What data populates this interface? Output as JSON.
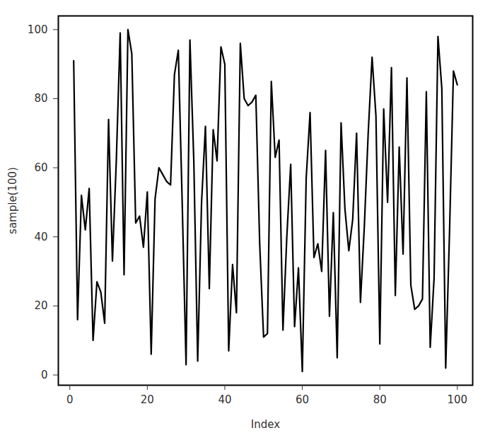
{
  "chart_data": {
    "type": "line",
    "x_label": "Index",
    "y_label": "sample(100)",
    "x": [
      1,
      2,
      3,
      4,
      5,
      6,
      7,
      8,
      9,
      10,
      11,
      12,
      13,
      14,
      15,
      16,
      17,
      18,
      19,
      20,
      21,
      22,
      23,
      24,
      25,
      26,
      27,
      28,
      29,
      30,
      31,
      32,
      33,
      34,
      35,
      36,
      37,
      38,
      39,
      40,
      41,
      42,
      43,
      44,
      45,
      46,
      47,
      48,
      49,
      50,
      51,
      52,
      53,
      54,
      55,
      56,
      57,
      58,
      59,
      60,
      61,
      62,
      63,
      64,
      65,
      66,
      67,
      68,
      69,
      70,
      71,
      72,
      73,
      74,
      75,
      76,
      77,
      78,
      79,
      80,
      81,
      82,
      83,
      84,
      85,
      86,
      87,
      88,
      89,
      90,
      91,
      92,
      93,
      94,
      95,
      96,
      97,
      98,
      99,
      100
    ],
    "values": [
      91,
      16,
      52,
      42,
      54,
      10,
      27,
      24,
      15,
      74,
      33,
      62,
      99,
      29,
      100,
      93,
      44,
      46,
      37,
      53,
      6,
      51,
      60,
      58,
      56,
      55,
      87,
      94,
      50,
      3,
      97,
      62,
      4,
      50,
      72,
      25,
      71,
      62,
      95,
      90,
      7,
      32,
      18,
      96,
      80,
      78,
      79,
      81,
      38,
      11,
      12,
      85,
      63,
      68,
      13,
      40,
      61,
      14,
      31,
      1,
      57,
      76,
      34,
      38,
      30,
      65,
      17,
      47,
      5,
      73,
      48,
      36,
      45,
      70,
      21,
      43,
      70,
      92,
      75,
      9,
      77,
      50,
      89,
      23,
      66,
      35,
      86,
      26,
      19,
      20,
      22,
      82,
      8,
      28,
      98,
      83,
      2,
      42,
      88,
      84
    ],
    "color": "#000000",
    "xlim": [
      -2.96,
      103.96
    ],
    "ylim": [
      -2.96,
      103.96
    ],
    "xticks": [
      0,
      20,
      40,
      60,
      80,
      100
    ],
    "yticks": [
      0,
      20,
      40,
      60,
      80,
      100
    ],
    "grid": false
  }
}
